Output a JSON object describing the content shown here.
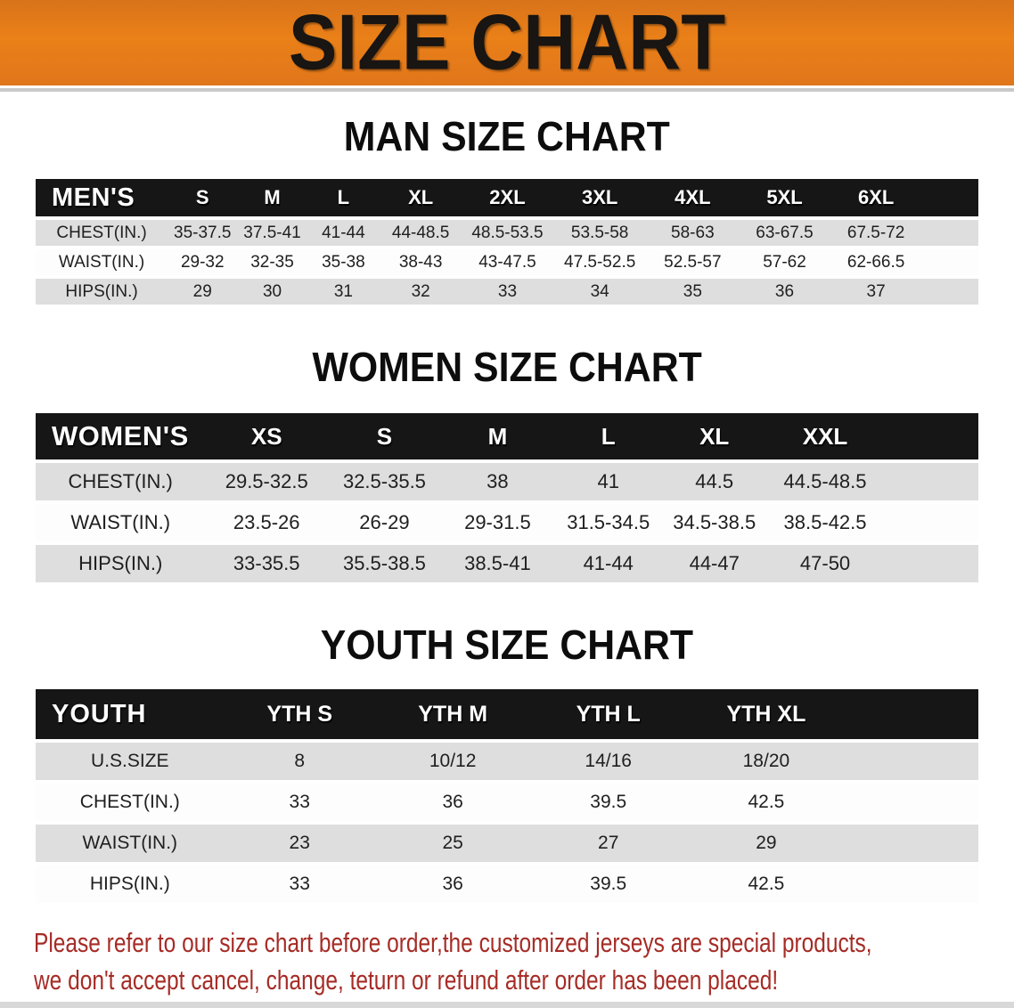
{
  "banner": {
    "title": "SIZE CHART"
  },
  "sections": [
    {
      "heading": "MAN SIZE CHART",
      "table": {
        "label": "MEN'S",
        "columns": [
          "S",
          "M",
          "L",
          "XL",
          "2XL",
          "3XL",
          "4XL",
          "5XL",
          "6XL"
        ],
        "rows": [
          {
            "label": "CHEST(IN.)",
            "values": [
              "35-37.5",
              "37.5-41",
              "41-44",
              "44-48.5",
              "48.5-53.5",
              "53.5-58",
              "58-63",
              "63-67.5",
              "67.5-72"
            ]
          },
          {
            "label": "WAIST(IN.)",
            "values": [
              "29-32",
              "32-35",
              "35-38",
              "38-43",
              "43-47.5",
              "47.5-52.5",
              "52.5-57",
              "57-62",
              "62-66.5"
            ]
          },
          {
            "label": "HIPS(IN.)",
            "values": [
              "29",
              "30",
              "31",
              "32",
              "33",
              "34",
              "35",
              "36",
              "37"
            ]
          }
        ]
      }
    },
    {
      "heading": "WOMEN SIZE CHART",
      "table": {
        "label": "WOMEN'S",
        "columns": [
          "XS",
          "S",
          "M",
          "L",
          "XL",
          "XXL"
        ],
        "rows": [
          {
            "label": "CHEST(IN.)",
            "values": [
              "29.5-32.5",
              "32.5-35.5",
              "38",
              "41",
              "44.5",
              "44.5-48.5"
            ]
          },
          {
            "label": "WAIST(IN.)",
            "values": [
              "23.5-26",
              "26-29",
              "29-31.5",
              "31.5-34.5",
              "34.5-38.5",
              "38.5-42.5"
            ]
          },
          {
            "label": "HIPS(IN.)",
            "values": [
              "33-35.5",
              "35.5-38.5",
              "38.5-41",
              "41-44",
              "44-47",
              "47-50"
            ]
          }
        ]
      }
    },
    {
      "heading": "YOUTH SIZE CHART",
      "table": {
        "label": "YOUTH",
        "columns": [
          "YTH S",
          "YTH M",
          "YTH L",
          "YTH XL"
        ],
        "rows": [
          {
            "label": "U.S.SIZE",
            "values": [
              "8",
              "10/12",
              "14/16",
              "18/20"
            ]
          },
          {
            "label": "CHEST(IN.)",
            "values": [
              "33",
              "36",
              "39.5",
              "42.5"
            ]
          },
          {
            "label": "WAIST(IN.)",
            "values": [
              "23",
              "25",
              "27",
              "29"
            ]
          },
          {
            "label": "HIPS(IN.)",
            "values": [
              "33",
              "36",
              "39.5",
              "42.5"
            ]
          }
        ]
      }
    }
  ],
  "disclaimer": {
    "line1": "Please refer to our size chart before order,the customized jerseys are special products,",
    "line2": "we don't accept cancel, change, teturn or refund after order has been placed!"
  },
  "colors": {
    "banner_orange": "#e1791b",
    "header_band_black": "#161616",
    "row_gray": "#dedede",
    "disclaimer_red": "#a62c26"
  }
}
